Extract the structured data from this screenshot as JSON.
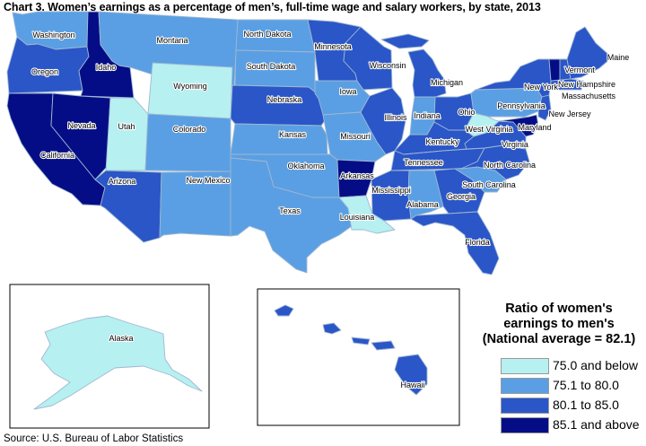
{
  "title": "Chart 3. Women’s earnings as a percentage of men’s, full-time wage and salary workers, by state, 2013",
  "source": "Source: U.S. Bureau of Labor Statistics",
  "legend": {
    "title_lines": [
      "Ratio of women's",
      "earnings to men's",
      "(National average = 82.1)"
    ],
    "items": [
      {
        "label": "75.0 and below",
        "color": "#b6f0f0"
      },
      {
        "label": "75.1 to 80.0",
        "color": "#5a9fe3"
      },
      {
        "label": "80.1 to 85.0",
        "color": "#2a56c8"
      },
      {
        "label": "85.1 and above",
        "color": "#050d86"
      }
    ]
  },
  "colors": {
    "border": "#9fb7d2",
    "inset_border": "#000000",
    "background": "#ffffff"
  },
  "states": [
    {
      "name": "Washington",
      "category": 1
    },
    {
      "name": "Oregon",
      "category": 2
    },
    {
      "name": "California",
      "category": 3
    },
    {
      "name": "Idaho",
      "category": 3
    },
    {
      "name": "Nevada",
      "category": 3
    },
    {
      "name": "Montana",
      "category": 1
    },
    {
      "name": "Wyoming",
      "category": 0
    },
    {
      "name": "Utah",
      "category": 0
    },
    {
      "name": "Colorado",
      "category": 1
    },
    {
      "name": "Arizona",
      "category": 2
    },
    {
      "name": "New Mexico",
      "category": 1
    },
    {
      "name": "North Dakota",
      "category": 1
    },
    {
      "name": "South Dakota",
      "category": 1
    },
    {
      "name": "Nebraska",
      "category": 2
    },
    {
      "name": "Kansas",
      "category": 1
    },
    {
      "name": "Oklahoma",
      "category": 1
    },
    {
      "name": "Texas",
      "category": 1
    },
    {
      "name": "Minnesota",
      "category": 2
    },
    {
      "name": "Iowa",
      "category": 1
    },
    {
      "name": "Missouri",
      "category": 1
    },
    {
      "name": "Arkansas",
      "category": 3
    },
    {
      "name": "Louisiana",
      "category": 0
    },
    {
      "name": "Wisconsin",
      "category": 2
    },
    {
      "name": "Illinois",
      "category": 2
    },
    {
      "name": "Michigan",
      "category": 2
    },
    {
      "name": "Indiana",
      "category": 1
    },
    {
      "name": "Ohio",
      "category": 2
    },
    {
      "name": "Kentucky",
      "category": 2
    },
    {
      "name": "Tennessee",
      "category": 2
    },
    {
      "name": "Mississippi",
      "category": 2
    },
    {
      "name": "Alabama",
      "category": 1
    },
    {
      "name": "Georgia",
      "category": 2
    },
    {
      "name": "Florida",
      "category": 2
    },
    {
      "name": "South Carolina",
      "category": 1
    },
    {
      "name": "North Carolina",
      "category": 2
    },
    {
      "name": "Virginia",
      "category": 2
    },
    {
      "name": "West Virginia",
      "category": 0
    },
    {
      "name": "Pennsylvania",
      "category": 1
    },
    {
      "name": "New York",
      "category": 2
    },
    {
      "name": "Maryland",
      "category": 3
    },
    {
      "name": "New Jersey",
      "category": 2
    },
    {
      "name": "Vermont",
      "category": 3
    },
    {
      "name": "New Hampshire",
      "category": 2
    },
    {
      "name": "Massachusetts",
      "category": 2
    },
    {
      "name": "Maine",
      "category": 2
    },
    {
      "name": "Alaska",
      "category": 0
    },
    {
      "name": "Hawaii",
      "category": 2
    }
  ]
}
